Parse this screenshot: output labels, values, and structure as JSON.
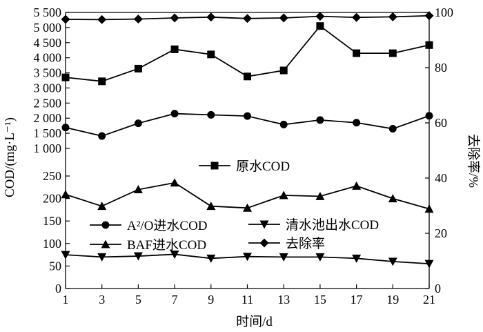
{
  "chart_data": {
    "type": "line",
    "x": [
      1,
      3,
      5,
      7,
      9,
      11,
      13,
      15,
      17,
      19,
      21
    ],
    "xlabel": "时间/d",
    "ylabel_left": "COD/(mg·L⁻¹)",
    "ylabel_right": "去除率/%",
    "xlim": [
      1,
      21
    ],
    "ylim_right": [
      0,
      100
    ],
    "left_axis_broken": true,
    "left_lower_range": [
      0,
      250
    ],
    "left_upper_range": [
      1000,
      5500
    ],
    "xticks": [
      "1",
      "3",
      "5",
      "7",
      "9",
      "11",
      "13",
      "15",
      "17",
      "19",
      "21"
    ],
    "yticks_left_lower": [
      "0",
      "50",
      "100",
      "150",
      "200",
      "250"
    ],
    "yticks_left_upper": [
      "1 000",
      "1 500",
      "2 000",
      "2 500",
      "3 000",
      "3 500",
      "4 000",
      "4 500",
      "5 000",
      "5 500"
    ],
    "yticks_right": [
      "0",
      "20",
      "40",
      "60",
      "80",
      "100"
    ],
    "grid": false,
    "series": [
      {
        "name": "原水COD",
        "marker": "square",
        "axis": "left",
        "values": [
          3350,
          3220,
          3640,
          4280,
          4110,
          3380,
          3580,
          5050,
          4150,
          4150,
          4420
        ]
      },
      {
        "name": "A²/O进水COD",
        "marker": "circle",
        "axis": "left",
        "values": [
          1690,
          1410,
          1830,
          2150,
          2110,
          2070,
          1790,
          1940,
          1850,
          1650,
          2080
        ]
      },
      {
        "name": "BAF进水COD",
        "marker": "triangle-up",
        "axis": "left",
        "values": [
          209,
          183,
          220,
          235,
          183,
          179,
          207,
          205,
          228,
          200,
          177
        ]
      },
      {
        "name": "清水池出水COD",
        "marker": "triangle-down",
        "axis": "left",
        "values": [
          75,
          70,
          72,
          76,
          67,
          71,
          70,
          70,
          67,
          60,
          55
        ]
      },
      {
        "name": "去除率",
        "marker": "diamond",
        "axis": "right",
        "values": [
          97.5,
          97.4,
          97.6,
          98.0,
          98.3,
          97.8,
          98.0,
          98.6,
          98.2,
          98.4,
          98.8
        ]
      }
    ]
  }
}
